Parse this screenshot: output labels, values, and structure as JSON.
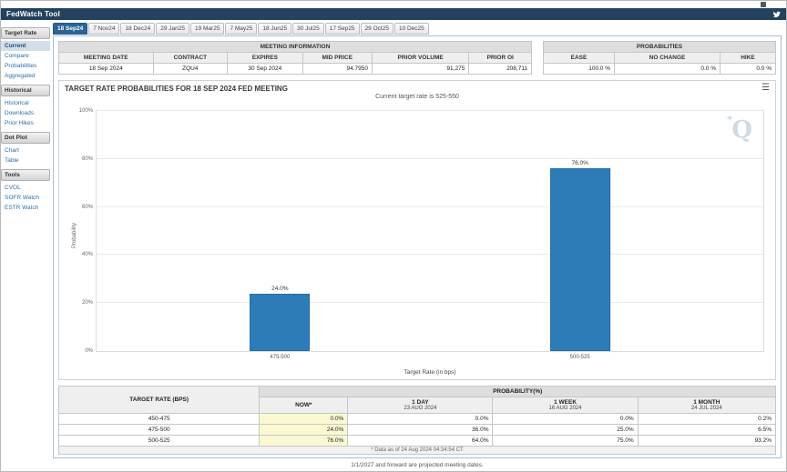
{
  "app": {
    "title": "FedWatch Tool"
  },
  "icons": {
    "topbar_social": "twitter-bird",
    "chart_menu": "hamburger"
  },
  "chart_menu_glyph": "☰",
  "watermark": "Q",
  "sidebar": {
    "selected": "Current",
    "sections": [
      {
        "header": "Target Rate",
        "items": [
          "Current",
          "Compare",
          "Probabilities",
          "Aggregated"
        ]
      },
      {
        "header": "Historical",
        "items": [
          "Historical",
          "Downloads",
          "Prior Hikes"
        ]
      },
      {
        "header": "Dot Plot",
        "items": [
          "Chart",
          "Table"
        ]
      },
      {
        "header": "Tools",
        "items": [
          "CVOL",
          "SOFR Watch",
          "ESTR Watch"
        ]
      }
    ]
  },
  "tabs": [
    "18 Sep24",
    "7 Nov24",
    "18 Dec24",
    "29 Jan25",
    "19 Mar25",
    "7 May25",
    "18 Jun25",
    "30 Jul25",
    "17 Sep25",
    "29 Oct25",
    "10 Dec25"
  ],
  "selected_tab": "18 Sep24",
  "meeting_info": {
    "title": "MEETING INFORMATION",
    "columns": [
      "MEETING DATE",
      "CONTRACT",
      "EXPIRES",
      "MID PRICE",
      "PRIOR VOLUME",
      "PRIOR OI"
    ],
    "values": [
      "18 Sep 2024",
      "ZQU4",
      "30 Sep 2024",
      "94.7950",
      "91,275",
      "208,711"
    ]
  },
  "probabilities_summary": {
    "title": "PROBABILITIES",
    "columns": [
      "EASE",
      "NO CHANGE",
      "HIKE"
    ],
    "values": [
      "100.0 %",
      "0.0 %",
      "0.0 %"
    ]
  },
  "chart": {
    "title": "TARGET RATE PROBABILITIES FOR 18 SEP 2024 FED MEETING",
    "subtitle": "Current target rate is 525-550"
  },
  "chart_data": {
    "type": "bar",
    "categories": [
      "475-500",
      "500-525"
    ],
    "values": [
      24.0,
      76.0
    ],
    "labels": [
      "24.0%",
      "76.0%"
    ],
    "title": "TARGET RATE PROBABILITIES FOR 18 SEP 2024 FED MEETING",
    "subtitle": "Current target rate is 525-550",
    "xlabel": "Target Rate (in bps)",
    "ylabel": "Probability",
    "ylim": [
      0,
      100
    ],
    "yticks": [
      0,
      20,
      40,
      60,
      80,
      100
    ],
    "grid": true,
    "legend": false,
    "bar_color": "#2d7cb8"
  },
  "history_table": {
    "col0": "TARGET RATE (BPS)",
    "group_header": "PROBABILITY(%)",
    "columns": [
      {
        "label": "NOW*",
        "sub": ""
      },
      {
        "label": "1 DAY",
        "sub": "23 AUG 2024"
      },
      {
        "label": "1 WEEK",
        "sub": "16 AUG 2024"
      },
      {
        "label": "1 MONTH",
        "sub": "24 JUL 2024"
      }
    ],
    "rows": [
      {
        "rate": "450-475",
        "now": "0.0%",
        "day": "0.0%",
        "week": "0.0%",
        "month": "0.2%"
      },
      {
        "rate": "475-500",
        "now": "24.0%",
        "day": "36.0%",
        "week": "25.0%",
        "month": "6.5%"
      },
      {
        "rate": "500-525",
        "now": "76.0%",
        "day": "64.0%",
        "week": "75.0%",
        "month": "93.2%"
      }
    ],
    "footnote": "* Data as of 24 Aug 2024 04:34:54 CT"
  },
  "footer_note": "1/1/2027 and forward are projected meeting dates.",
  "colors": {
    "accent": "#2a6496",
    "topbar": "#23425f",
    "bar": "#2d7cb8",
    "now_highlight": "#fbf9d2"
  }
}
